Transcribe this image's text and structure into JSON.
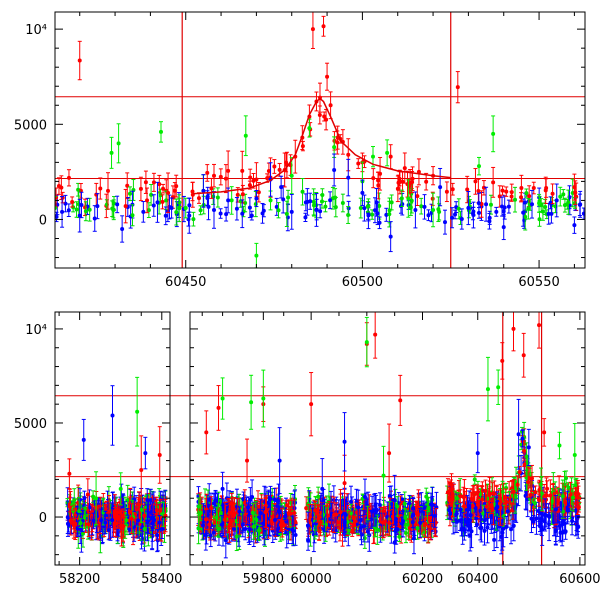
{
  "chart_data": [
    {
      "type": "scatter",
      "title": "",
      "xlabel": "",
      "ylabel": "",
      "xlim": [
        60413,
        60563
      ],
      "ylim": [
        -2550,
        10900
      ],
      "grid": false,
      "x_ticks": [
        60450,
        60500,
        60550
      ],
      "x_tick_labels": [
        "60450",
        "60500",
        "60550"
      ],
      "y_ticks": [
        0,
        5000,
        10000
      ],
      "y_tick_labels": [
        "0",
        "5000",
        "10⁴"
      ],
      "reference_lines": {
        "horizontal": [
          6450,
          2150
        ],
        "vertical": [
          60449,
          60525
        ]
      },
      "model_curve": {
        "color": "#ff0000",
        "x": [
          60452,
          60460,
          60468,
          60474,
          60478,
          60481,
          60483,
          60485,
          60487,
          60488,
          60489,
          60491,
          60494,
          60498,
          60503,
          60510,
          60520,
          60525
        ],
        "y": [
          1350,
          1450,
          1650,
          2050,
          2600,
          3400,
          4400,
          5500,
          6200,
          6350,
          6200,
          5400,
          4100,
          3400,
          2900,
          2550,
          2300,
          2200
        ]
      },
      "series": [
        {
          "name": "",
          "color": "#ff0000",
          "points": [
            [
              60420,
              8350
            ],
            [
              60428,
              1500
            ],
            [
              60433,
              700
            ],
            [
              60441,
              1950
            ],
            [
              60445,
              1400
            ],
            [
              60452,
              1300
            ],
            [
              60458,
              2300
            ],
            [
              60462,
              2550
            ],
            [
              60466,
              2550
            ],
            [
              60470,
              2100
            ],
            [
              60474,
              2200
            ],
            [
              60478,
              2600
            ],
            [
              60481,
              3300
            ],
            [
              60483,
              4300
            ],
            [
              60485,
              5400
            ],
            [
              60486,
              10000
            ],
            [
              60487,
              6200
            ],
            [
              60488,
              6400
            ],
            [
              60489,
              10150
            ],
            [
              60490,
              7500
            ],
            [
              60491,
              6000
            ],
            [
              60493,
              4300
            ],
            [
              60496,
              3400
            ],
            [
              60500,
              3000
            ],
            [
              60505,
              2400
            ],
            [
              60508,
              3300
            ],
            [
              60512,
              2700
            ],
            [
              60516,
              2500
            ],
            [
              60520,
              2300
            ],
            [
              60527,
              6950
            ],
            [
              60532,
              2000
            ],
            [
              60537,
              1950
            ],
            [
              60545,
              1650
            ],
            [
              60552,
              1650
            ],
            [
              60560,
              1700
            ]
          ]
        },
        {
          "name": "",
          "color": "#00ff00",
          "points": [
            [
              60413,
              600
            ],
            [
              60429,
              3500
            ],
            [
              60431,
              4000
            ],
            [
              60443,
              4600
            ],
            [
              60450,
              600
            ],
            [
              60455,
              1500
            ],
            [
              60463,
              1000
            ],
            [
              60467,
              4400
            ],
            [
              60470,
              -1900
            ],
            [
              60474,
              1000
            ],
            [
              60480,
              2300
            ],
            [
              60485,
              4800
            ],
            [
              60492,
              3800
            ],
            [
              60500,
              2000
            ],
            [
              60503,
              3300
            ],
            [
              60507,
              3500
            ],
            [
              60513,
              1100
            ],
            [
              60520,
              500
            ],
            [
              60533,
              2800
            ],
            [
              60537,
              4500
            ],
            [
              60550,
              850
            ],
            [
              60556,
              1200
            ]
          ]
        },
        {
          "name": "",
          "color": "#0000ff",
          "points": [
            [
              60415,
              400
            ],
            [
              60420,
              200
            ],
            [
              60425,
              700
            ],
            [
              60432,
              -500
            ],
            [
              60438,
              400
            ],
            [
              60442,
              900
            ],
            [
              60446,
              600
            ],
            [
              60451,
              200
            ],
            [
              60455,
              1500
            ],
            [
              60458,
              500
            ],
            [
              60462,
              1000
            ],
            [
              60466,
              300
            ],
            [
              60470,
              1100
            ],
            [
              60474,
              2100
            ],
            [
              60477,
              1700
            ],
            [
              60480,
              400
            ],
            [
              60484,
              900
            ],
            [
              60487,
              500
            ],
            [
              60492,
              2600
            ],
            [
              60496,
              2200
            ],
            [
              60500,
              1400
            ],
            [
              60504,
              900
            ],
            [
              60508,
              -900
            ],
            [
              60515,
              500
            ],
            [
              60522,
              1700
            ],
            [
              60530,
              600
            ],
            [
              60535,
              800
            ],
            [
              60540,
              -400
            ],
            [
              60548,
              800
            ],
            [
              60555,
              1000
            ],
            [
              60560,
              -300
            ]
          ]
        }
      ]
    },
    {
      "type": "scatter",
      "title": "",
      "xlabel": "",
      "ylabel": "",
      "segments": [
        [
          58140,
          58420
        ],
        [
          59620,
          59890
        ],
        [
          59980,
          60235
        ],
        [
          60330,
          60610
        ]
      ],
      "ylim": [
        -2550,
        10900
      ],
      "grid": false,
      "x_ticks": [
        58200,
        58400,
        59800,
        60000,
        60200,
        60400,
        60600
      ],
      "x_tick_labels": [
        "58200",
        "58400",
        "59800",
        "60000",
        "60200",
        "60400",
        "60600"
      ],
      "y_ticks": [
        0,
        5000,
        10000
      ],
      "y_tick_labels": [
        "0",
        "5000",
        "10⁴"
      ],
      "reference_lines": {
        "horizontal": [
          6450,
          2150
        ],
        "vertical": [
          60449,
          60525
        ]
      },
      "series": [
        {
          "name": "",
          "color": "#ff0000",
          "points": [
            [
              58175,
              2300
            ],
            [
              58220,
              1200
            ],
            [
              58350,
              2500
            ],
            [
              58395,
              3300
            ],
            [
              59660,
              4500
            ],
            [
              59690,
              5800
            ],
            [
              59760,
              3000
            ],
            [
              59800,
              6000
            ],
            [
              60000,
              6000
            ],
            [
              60060,
              1800
            ],
            [
              60100,
              9200
            ],
            [
              60115,
              9700
            ],
            [
              60140,
              3400
            ],
            [
              60160,
              6200
            ],
            [
              60448,
              8300
            ],
            [
              60470,
              10000
            ],
            [
              60490,
              8600
            ],
            [
              60520,
              10200
            ],
            [
              60530,
              4500
            ]
          ]
        },
        {
          "name": "",
          "color": "#00ff00",
          "points": [
            [
              58240,
              1000
            ],
            [
              58300,
              1500
            ],
            [
              58340,
              5600
            ],
            [
              59700,
              6300
            ],
            [
              59770,
              6100
            ],
            [
              59800,
              6300
            ],
            [
              60100,
              9300
            ],
            [
              60130,
              2200
            ],
            [
              60420,
              6800
            ],
            [
              60440,
              6900
            ],
            [
              60560,
              3800
            ],
            [
              60590,
              3300
            ]
          ]
        },
        {
          "name": "",
          "color": "#0000ff",
          "points": [
            [
              58210,
              4100
            ],
            [
              58280,
              5400
            ],
            [
              58360,
              3400
            ],
            [
              59700,
              1500
            ],
            [
              59840,
              3000
            ],
            [
              60020,
              1500
            ],
            [
              60060,
              4000
            ],
            [
              60150,
              900
            ],
            [
              60400,
              3400
            ],
            [
              60480,
              4400
            ],
            [
              60500,
              3700
            ]
          ]
        }
      ]
    }
  ]
}
